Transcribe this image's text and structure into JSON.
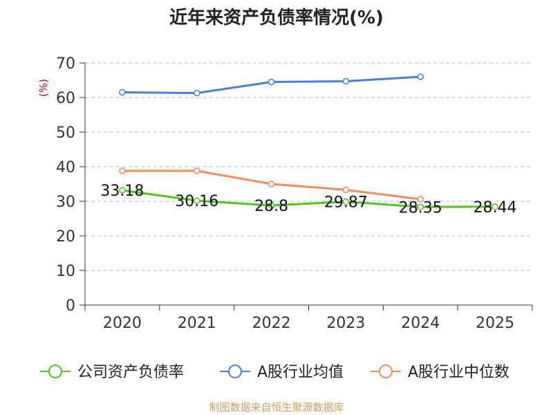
{
  "chart_data": {
    "type": "line",
    "title": "近年来资产负债率情况(%)",
    "ylabel": "(%)",
    "xlabel": "",
    "categories": [
      "2020",
      "2021",
      "2022",
      "2023",
      "2024",
      "2025"
    ],
    "ylim": [
      0,
      70
    ],
    "yticks": [
      0,
      10,
      20,
      30,
      40,
      50,
      60,
      70
    ],
    "grid": true,
    "legend_position": "bottom",
    "series": [
      {
        "name": "公司资产负债率",
        "color": "#52c41a",
        "values": [
          33.18,
          30.16,
          28.8,
          29.87,
          28.35,
          28.44
        ],
        "labels": [
          "33.18",
          "30.16",
          "28.8",
          "29.87",
          "28.35",
          "28.44"
        ]
      },
      {
        "name": "A股行业均值",
        "color": "#4a7fd4",
        "values": [
          61.5,
          61.3,
          64.5,
          64.7,
          66.0,
          null
        ]
      },
      {
        "name": "A股行业中位数",
        "color": "#f4895a",
        "values": [
          38.8,
          38.8,
          35.0,
          33.3,
          30.6,
          null
        ]
      }
    ]
  },
  "source_text": "制图数据来自恒生聚源数据库"
}
